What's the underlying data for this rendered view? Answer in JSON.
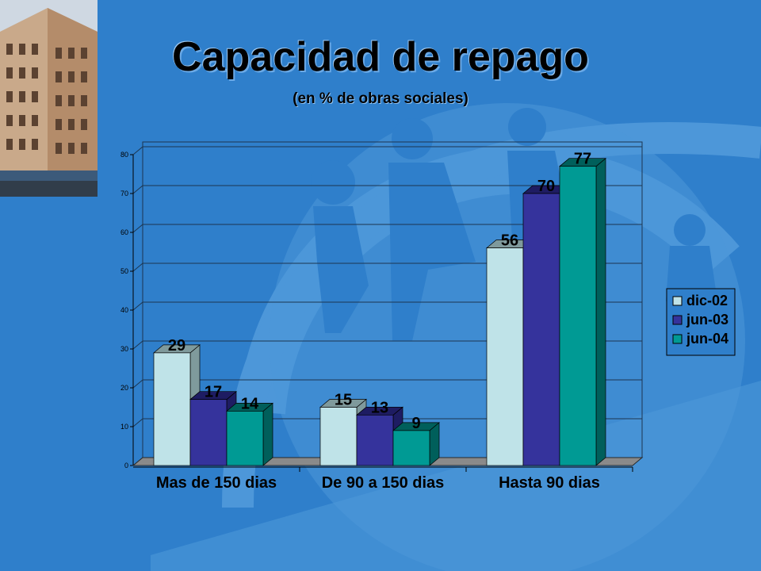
{
  "slide": {
    "title": "Capacidad de repago",
    "subtitle": "(en % de obras sociales)"
  },
  "colors": {
    "background": "#2f7fcb",
    "background_shape": "#4d97d9",
    "series": [
      "#bfe3e8",
      "#35339c",
      "#009a94"
    ],
    "series_side": [
      "#7f9a9c",
      "#1e1c62",
      "#005f5b"
    ]
  },
  "chart_data": {
    "type": "bar",
    "categories": [
      "Mas de 150 dias",
      "De 90 a 150 dias",
      "Hasta 90 dias"
    ],
    "series": [
      {
        "name": "dic-02",
        "values": [
          29,
          15,
          56
        ]
      },
      {
        "name": "jun-03",
        "values": [
          17,
          13,
          70
        ]
      },
      {
        "name": "jun-04",
        "values": [
          14,
          9,
          77
        ]
      }
    ],
    "title": "Capacidad de repago",
    "subtitle": "(en % de obras sociales)",
    "ylim": [
      0,
      80
    ],
    "yticks": [
      0,
      10,
      20,
      30,
      40,
      50,
      60,
      70,
      80
    ],
    "grid": true,
    "legend": "right",
    "style": "3d"
  }
}
